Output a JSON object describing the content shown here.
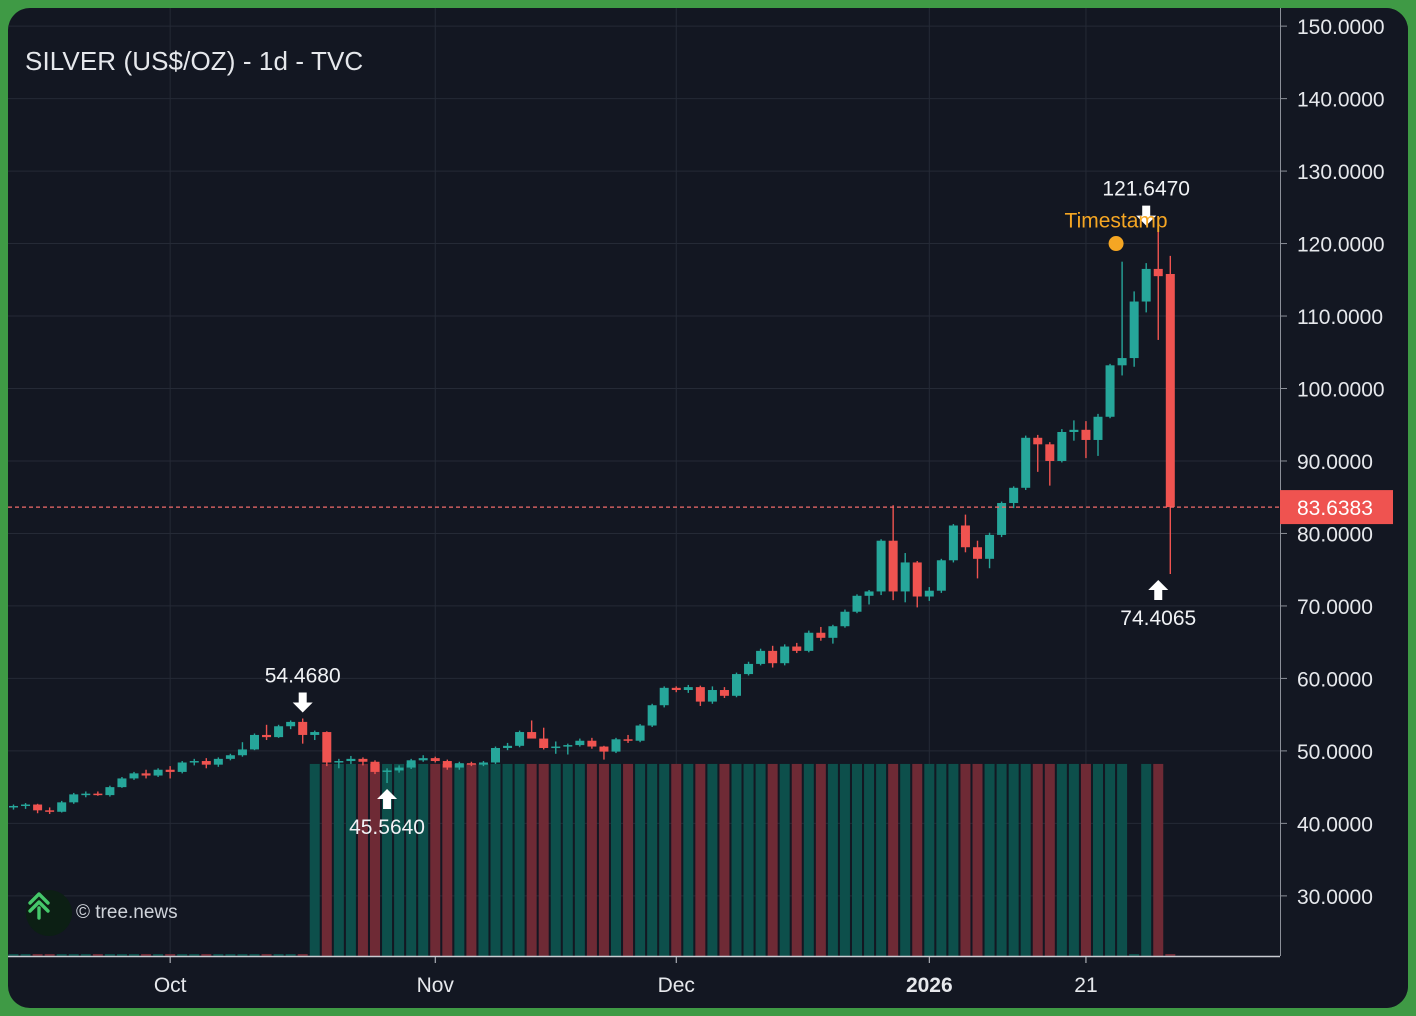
{
  "chart_title": "SILVER (US$/OZ) - 1d - TVC",
  "watermark": "© tree.news",
  "colors": {
    "background": "#131722",
    "up": "#26a69a",
    "down": "#ef5350",
    "volume_up": "#0d4f4b",
    "volume_down": "#6e2a35",
    "grid": "#252a36",
    "axis_text": "#e6e8ec",
    "timestamp": "#f5a623",
    "price_line": "#f26b6b"
  },
  "chart_data": {
    "type": "candlestick",
    "title": "SILVER (US$/OZ) - 1d - TVC",
    "y_ticks": [
      {
        "value": 150,
        "label": "150.0000"
      },
      {
        "value": 140,
        "label": "140.0000"
      },
      {
        "value": 130,
        "label": "130.0000"
      },
      {
        "value": 120,
        "label": "120.0000"
      },
      {
        "value": 110,
        "label": "110.0000"
      },
      {
        "value": 100,
        "label": "100.0000"
      },
      {
        "value": 90,
        "label": "90.0000"
      },
      {
        "value": 80,
        "label": "80.0000"
      },
      {
        "value": 70,
        "label": "70.0000"
      },
      {
        "value": 60,
        "label": "60.0000"
      },
      {
        "value": 50,
        "label": "50.0000"
      },
      {
        "value": 40,
        "label": "40.0000"
      },
      {
        "value": 30,
        "label": "30.0000"
      }
    ],
    "ylim": [
      21.7,
      152.5
    ],
    "x_ticks": [
      {
        "index": 13,
        "label": "Oct",
        "bold": false
      },
      {
        "index": 35,
        "label": "Nov",
        "bold": false
      },
      {
        "index": 55,
        "label": "Dec",
        "bold": false
      },
      {
        "index": 76,
        "label": "2026",
        "bold": true
      },
      {
        "index": 89,
        "label": "21",
        "bold": false
      }
    ],
    "current_price": {
      "value": 83.6383,
      "label": "83.6383"
    },
    "annotations": [
      {
        "type": "high",
        "index": 24,
        "value": 54.468,
        "label": "54.4680"
      },
      {
        "type": "low",
        "index": 31,
        "value": 45.564,
        "label": "45.5640"
      },
      {
        "type": "high",
        "index": 94,
        "value": 121.647,
        "label": "121.6470"
      },
      {
        "type": "low",
        "index": 95,
        "value": 74.4065,
        "label": "74.4065"
      }
    ],
    "timestamp_marker": {
      "index": 91.5,
      "value": 120.0,
      "label": "Timestamp"
    },
    "volume_profile": [
      {
        "from": 25,
        "to": 95,
        "direction": "mixed"
      }
    ],
    "ohlc": [
      [
        42.2,
        42.6,
        41.9,
        42.4
      ],
      [
        42.4,
        42.8,
        42.0,
        42.6
      ],
      [
        42.6,
        42.7,
        41.4,
        41.8
      ],
      [
        41.8,
        42.2,
        41.3,
        41.6
      ],
      [
        41.6,
        43.1,
        41.5,
        42.9
      ],
      [
        42.9,
        44.2,
        42.7,
        44.0
      ],
      [
        44.0,
        44.4,
        43.6,
        44.1
      ],
      [
        44.1,
        44.4,
        43.8,
        43.9
      ],
      [
        43.9,
        45.2,
        43.7,
        45.0
      ],
      [
        45.0,
        46.4,
        44.9,
        46.2
      ],
      [
        46.2,
        47.1,
        46.0,
        46.9
      ],
      [
        46.9,
        47.4,
        46.2,
        46.6
      ],
      [
        46.6,
        47.6,
        46.4,
        47.4
      ],
      [
        47.4,
        47.9,
        46.2,
        47.1
      ],
      [
        47.1,
        48.6,
        46.9,
        48.4
      ],
      [
        48.4,
        48.9,
        48.0,
        48.6
      ],
      [
        48.6,
        49.0,
        47.6,
        48.1
      ],
      [
        48.1,
        49.1,
        47.8,
        48.9
      ],
      [
        48.9,
        49.6,
        48.7,
        49.4
      ],
      [
        49.4,
        51.2,
        49.2,
        50.2
      ],
      [
        50.2,
        52.4,
        50.1,
        52.2
      ],
      [
        52.2,
        53.6,
        51.5,
        51.9
      ],
      [
        51.9,
        53.6,
        51.8,
        53.4
      ],
      [
        53.4,
        54.2,
        53.0,
        54.0
      ],
      [
        54.0,
        54.468,
        51.0,
        52.2
      ],
      [
        52.2,
        52.8,
        51.5,
        52.6
      ],
      [
        52.6,
        52.7,
        47.9,
        48.4
      ],
      [
        48.4,
        48.9,
        47.6,
        48.6
      ],
      [
        48.6,
        49.3,
        48.2,
        48.9
      ],
      [
        48.9,
        49.1,
        48.0,
        48.5
      ],
      [
        48.5,
        48.7,
        46.8,
        47.1
      ],
      [
        47.1,
        47.6,
        45.564,
        47.3
      ],
      [
        47.3,
        48.0,
        47.0,
        47.7
      ],
      [
        47.7,
        48.9,
        47.5,
        48.7
      ],
      [
        48.7,
        49.4,
        48.5,
        49.0
      ],
      [
        49.0,
        49.2,
        48.4,
        48.6
      ],
      [
        48.6,
        48.8,
        47.4,
        47.7
      ],
      [
        47.7,
        48.5,
        47.4,
        48.3
      ],
      [
        48.3,
        48.5,
        47.9,
        48.1
      ],
      [
        48.1,
        48.6,
        47.9,
        48.4
      ],
      [
        48.4,
        50.6,
        48.2,
        50.4
      ],
      [
        50.4,
        51.1,
        50.1,
        50.7
      ],
      [
        50.7,
        52.8,
        50.5,
        52.6
      ],
      [
        52.6,
        54.2,
        52.0,
        51.7
      ],
      [
        51.7,
        53.2,
        50.2,
        50.4
      ],
      [
        50.4,
        51.3,
        49.6,
        50.6
      ],
      [
        50.6,
        51.0,
        49.5,
        50.8
      ],
      [
        50.8,
        51.7,
        50.6,
        51.4
      ],
      [
        51.4,
        51.8,
        50.3,
        50.6
      ],
      [
        50.6,
        50.7,
        48.8,
        49.9
      ],
      [
        49.9,
        51.8,
        49.7,
        51.6
      ],
      [
        51.6,
        52.2,
        51.1,
        51.4
      ],
      [
        51.4,
        53.7,
        51.2,
        53.5
      ],
      [
        53.5,
        56.5,
        53.3,
        56.3
      ],
      [
        56.3,
        58.9,
        56.0,
        58.7
      ],
      [
        58.7,
        58.9,
        58.1,
        58.4
      ],
      [
        58.4,
        59.1,
        58.0,
        58.8
      ],
      [
        58.8,
        59.0,
        56.2,
        56.8
      ],
      [
        56.8,
        58.9,
        56.5,
        58.4
      ],
      [
        58.4,
        58.8,
        57.3,
        57.6
      ],
      [
        57.6,
        60.8,
        57.4,
        60.6
      ],
      [
        60.6,
        62.3,
        60.4,
        62.0
      ],
      [
        62.0,
        64.1,
        61.8,
        63.8
      ],
      [
        63.8,
        64.5,
        61.5,
        62.1
      ],
      [
        62.1,
        64.7,
        61.8,
        64.4
      ],
      [
        64.4,
        64.9,
        63.5,
        63.8
      ],
      [
        63.8,
        66.6,
        63.6,
        66.3
      ],
      [
        66.3,
        67.1,
        65.2,
        65.6
      ],
      [
        65.6,
        67.4,
        64.8,
        67.2
      ],
      [
        67.2,
        69.5,
        67.0,
        69.2
      ],
      [
        69.2,
        71.6,
        69.0,
        71.4
      ],
      [
        71.4,
        72.2,
        70.2,
        72.0
      ],
      [
        72.0,
        79.2,
        71.5,
        79.0
      ],
      [
        79.0,
        83.9,
        70.8,
        72.0
      ],
      [
        72.0,
        77.3,
        70.5,
        76.0
      ],
      [
        76.0,
        76.2,
        69.8,
        71.3
      ],
      [
        71.3,
        72.6,
        70.7,
        72.1
      ],
      [
        72.1,
        76.5,
        71.8,
        76.3
      ],
      [
        76.3,
        81.3,
        76.0,
        81.1
      ],
      [
        81.1,
        82.6,
        77.4,
        78.1
      ],
      [
        78.1,
        79.0,
        73.8,
        76.5
      ],
      [
        76.5,
        80.1,
        75.2,
        79.8
      ],
      [
        79.8,
        84.4,
        79.5,
        84.2
      ],
      [
        84.2,
        86.5,
        83.5,
        86.3
      ],
      [
        86.3,
        93.5,
        86.0,
        93.2
      ],
      [
        93.2,
        93.6,
        88.5,
        92.3
      ],
      [
        92.3,
        92.6,
        86.6,
        90.0
      ],
      [
        90.0,
        94.4,
        89.8,
        94.0
      ],
      [
        94.0,
        95.6,
        92.8,
        94.3
      ],
      [
        94.3,
        95.5,
        90.4,
        92.9
      ],
      [
        92.9,
        96.5,
        90.7,
        96.1
      ],
      [
        96.1,
        103.4,
        95.9,
        103.2
      ],
      [
        103.2,
        117.5,
        101.8,
        104.2
      ],
      [
        104.2,
        113.4,
        103.0,
        112.0
      ],
      [
        112.0,
        117.3,
        110.5,
        116.5
      ],
      [
        116.5,
        121.647,
        106.7,
        115.5
      ],
      [
        115.8,
        118.3,
        74.4065,
        83.6383
      ]
    ]
  }
}
